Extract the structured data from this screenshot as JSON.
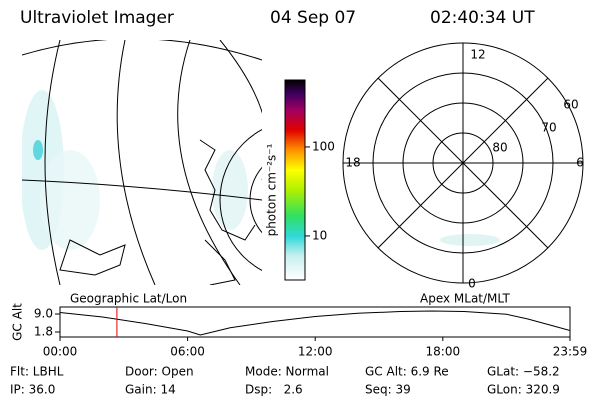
{
  "header": {
    "instrument": "Ultraviolet Imager",
    "date": "04 Sep 07",
    "time": "02:40:34 UT"
  },
  "colorbar": {
    "label": "photon cm⁻²s⁻¹",
    "scale": "log",
    "lim": [
      3.2,
      565
    ],
    "ticks": [
      10,
      100
    ]
  },
  "polar": {
    "labels": [
      "12",
      "0",
      "18",
      "6",
      "60",
      "70",
      "80"
    ]
  },
  "altitude_plot": {
    "ylabel": "GC Alt",
    "left_label": "Geographic Lat/Lon",
    "right_label": "Apex MLat/MLT",
    "ylim": [
      -0.2,
      11.8
    ],
    "yticks": [
      {
        "value": 9,
        "label": "9.0"
      },
      1.8
    ],
    "xlim": [
      0,
      23.98
    ],
    "xticks": [
      {
        "value": 0,
        "label": "00:00"
      },
      {
        "value": 6,
        "label": "06:00"
      },
      {
        "value": 12,
        "label": "12:00"
      },
      {
        "value": 18,
        "label": "18:00"
      },
      {
        "value": 23.98,
        "label": "23:59"
      }
    ],
    "x": [
      0,
      2,
      4,
      6,
      6.6,
      8,
      10,
      12,
      14,
      16,
      17.5,
      19,
      21,
      22,
      23.98
    ],
    "values": [
      9.6,
      7.8,
      5.2,
      2.2,
      0.6,
      3.5,
      6.0,
      8.0,
      9.3,
      10.0,
      10.2,
      10.0,
      8.9,
      7.0,
      2.4
    ],
    "current_time": 2.676
  },
  "footer": {
    "rows": [
      [
        "Flt: LBHL",
        "Door: Open",
        "Mode: Normal",
        "GC Alt: 6.9 Re",
        "GLat: −58.2"
      ],
      [
        "IP: 36.0",
        "Gain: 14",
        "Dsp:   2.6",
        "Seq: 39",
        "GLon: 320.9"
      ]
    ]
  }
}
